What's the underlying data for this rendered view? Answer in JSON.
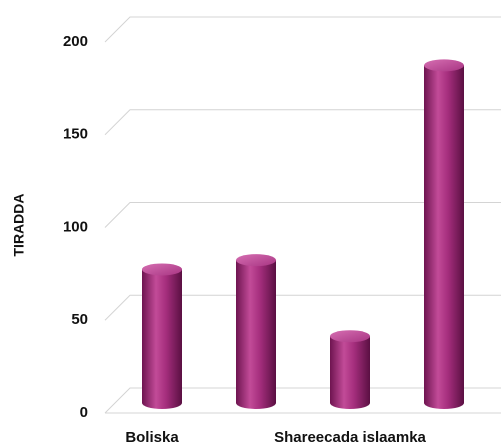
{
  "chart_data": {
    "type": "bar",
    "y_label": "TIRADDA",
    "categories": [
      "Boliska",
      null,
      "Shareecada islaamka",
      null
    ],
    "values": [
      72,
      77,
      36,
      182
    ],
    "color": "#b2388a",
    "ylim": [
      0,
      200
    ],
    "yticks": [
      0,
      50,
      100,
      150,
      200
    ],
    "grid": true
  }
}
